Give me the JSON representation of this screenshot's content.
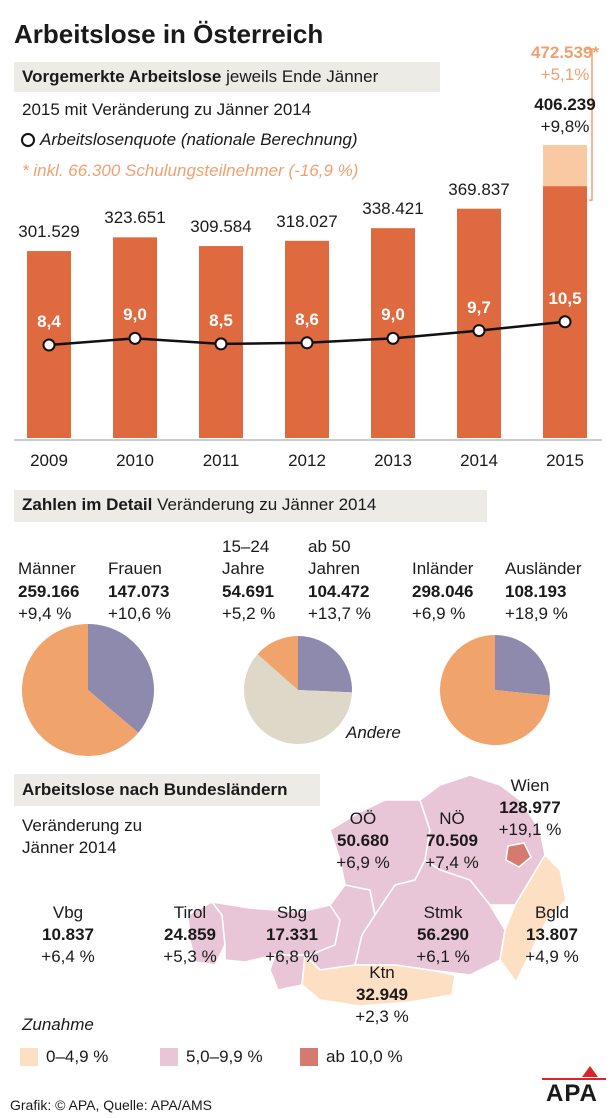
{
  "title": "Arbeitslose in Österreich",
  "chart_data": [
    {
      "type": "bar",
      "title": "Vorgemerkte Arbeitslose",
      "subtitle": "jeweils Ende Jänner",
      "note": "2015 mit Veränderung zu Jänner 2014",
      "footnote": "* inkl. 66.300 Schulungsteilnehmer (-16,9 %)",
      "categories": [
        "2009",
        "2010",
        "2011",
        "2012",
        "2013",
        "2014",
        "2015"
      ],
      "ylim": [
        0,
        500000
      ],
      "y2lim": [
        0,
        28
      ],
      "series": [
        {
          "type": "bar",
          "color": "#e06a3f",
          "values": [
            301529,
            323651,
            309584,
            318027,
            338421,
            369837,
            406239
          ],
          "value_labels": [
            "301.529",
            "323.651",
            "309.584",
            "318.027",
            "338.421",
            "369.837",
            "406.239"
          ]
        },
        {
          "type": "bar",
          "stacked": true,
          "color": "#f8c9a2",
          "values": [
            null,
            null,
            null,
            null,
            null,
            null,
            66300
          ]
        },
        {
          "type": "line",
          "name": "Arbeitslosenquote (nationale Berechnung)",
          "axis": "y2",
          "color": "#111111",
          "values": [
            8.4,
            9.0,
            8.5,
            8.6,
            9.0,
            9.7,
            10.5
          ],
          "value_labels": [
            "8,4",
            "9,0",
            "8,5",
            "8,6",
            "9,0",
            "9,7",
            "10,5"
          ]
        }
      ],
      "highlight": {
        "change": "+9,8%",
        "total": 472539,
        "total_label": "472.539*",
        "total_change": "+5,1%",
        "color": "#f0a070"
      }
    },
    {
      "type": "pie",
      "categories": [
        "Männer",
        "Frauen"
      ],
      "values": [
        259166,
        147073
      ],
      "value_labels": [
        "259.166",
        "147.073"
      ],
      "changes": [
        "+9,4 %",
        "+10,6 %"
      ],
      "colors": [
        "#f0a46c",
        "#8e8aad"
      ]
    },
    {
      "type": "pie",
      "categories": [
        "15–24 Jahre",
        "ab 50 Jahren",
        "Andere"
      ],
      "values": [
        54691,
        104472,
        247076
      ],
      "value_labels": [
        "54.691",
        "104.472",
        null
      ],
      "changes": [
        "+5,2 %",
        "+13,7 %",
        null
      ],
      "colors": [
        "#f0a46c",
        "#8e8aad",
        "#ddd8c8"
      ]
    },
    {
      "type": "pie",
      "categories": [
        "Inländer",
        "Ausländer"
      ],
      "values": [
        298046,
        108193
      ],
      "value_labels": [
        "298.046",
        "108.193"
      ],
      "changes": [
        "+6,9 %",
        "+18,9 %"
      ],
      "colors": [
        "#f0a46c",
        "#8e8aad"
      ]
    }
  ],
  "detail": {
    "title": "Zahlen im Detail",
    "subtitle": "Veränderung zu Jänner 2014"
  },
  "map": {
    "title": "Arbeitslose nach Bundesländern",
    "subtitle": "Veränderung zu Jänner 2014",
    "regions": [
      {
        "name": "Vbg",
        "value_label": "10.837",
        "change": "+6,4 %",
        "color": "#e8c6d8"
      },
      {
        "name": "Tirol",
        "value_label": "24.859",
        "change": "+5,3 %",
        "color": "#e8c6d8"
      },
      {
        "name": "Sbg",
        "value_label": "17.331",
        "change": "+6,8 %",
        "color": "#e8c6d8"
      },
      {
        "name": "OÖ",
        "value_label": "50.680",
        "change": "+6,9 %",
        "color": "#e8c6d8"
      },
      {
        "name": "NÖ",
        "value_label": "70.509",
        "change": "+7,4 %",
        "color": "#e8c6d8"
      },
      {
        "name": "Wien",
        "value_label": "128.977",
        "change": "+19,1 %",
        "color": "#d47a6e"
      },
      {
        "name": "Stmk",
        "value_label": "56.290",
        "change": "+6,1 %",
        "color": "#e8c6d8"
      },
      {
        "name": "Ktn",
        "value_label": "32.949",
        "change": "+2,3 %",
        "color": "#fde0c4"
      },
      {
        "name": "Bgld",
        "value_label": "13.807",
        "change": "+4,9 %",
        "color": "#fde0c4"
      }
    ],
    "legend": {
      "title": "Zunahme",
      "items": [
        {
          "label": "0–4,9 %",
          "color": "#fde0c4"
        },
        {
          "label": "5,0–9,9 %",
          "color": "#e8c6d8"
        },
        {
          "label": "ab 10,0 %",
          "color": "#d47a6e"
        }
      ]
    }
  },
  "footer": {
    "source": "Grafik: © APA, Quelle: APA/AMS",
    "logo": "APA"
  }
}
